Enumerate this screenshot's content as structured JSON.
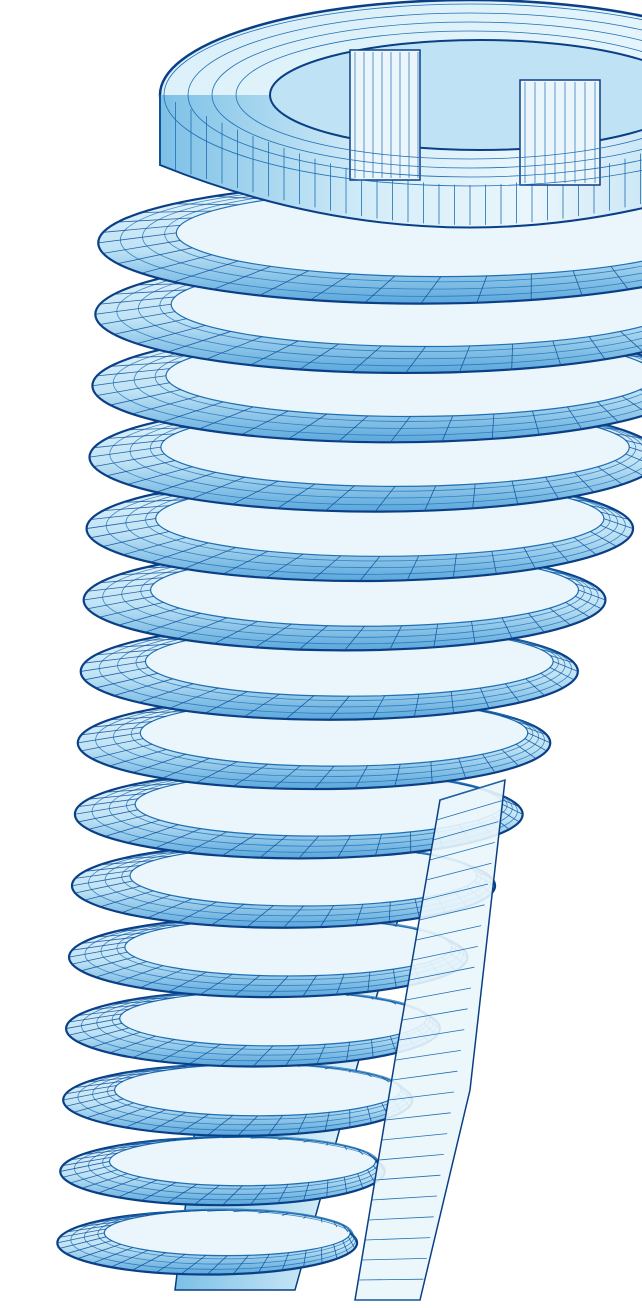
{
  "image": {
    "subject": "dental-implant-screw",
    "style": "wireframe-mesh-render",
    "thread_count": 15,
    "colors": {
      "background": "#ffffff",
      "surface_light": "#eaf6fc",
      "surface_mid": "#bfe3f5",
      "surface_dark": "#7cc0e6",
      "mesh_line": "#1f6fb4",
      "mesh_line_dark": "#0b4a98",
      "outline": "#0a3f86"
    }
  }
}
